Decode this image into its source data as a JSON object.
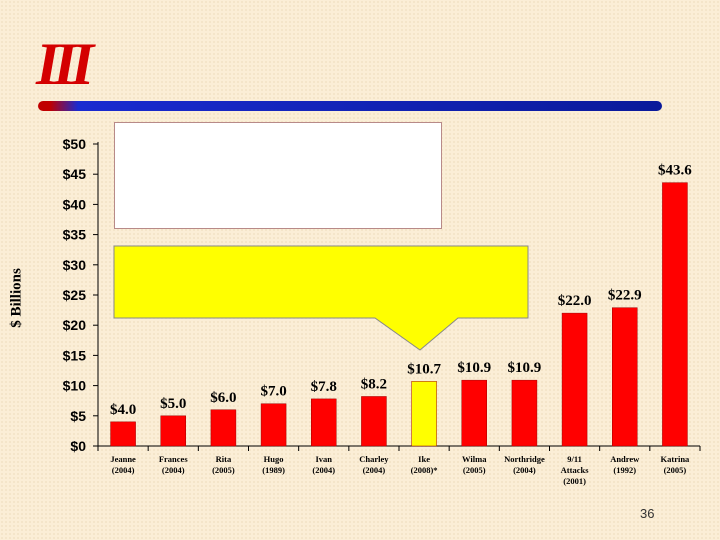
{
  "logo_text": "III",
  "slide_number": "36",
  "chart_data": {
    "type": "bar",
    "ylabel": "$ Billions",
    "ylim": [
      0,
      50
    ],
    "yticks": [
      "$0",
      "$5",
      "$10",
      "$15",
      "$20",
      "$25",
      "$30",
      "$35",
      "$40",
      "$45",
      "$50"
    ],
    "categories": [
      [
        "Jeanne",
        "(2004)"
      ],
      [
        "Frances",
        "(2004)"
      ],
      [
        "Rita",
        "(2005)"
      ],
      [
        "Hugo",
        "(1989)"
      ],
      [
        "Ivan",
        "(2004)"
      ],
      [
        "Charley",
        "(2004)"
      ],
      [
        "Ike",
        "(2008)*"
      ],
      [
        "Wilma",
        "(2005)"
      ],
      [
        "Northridge",
        "(2004)"
      ],
      [
        "9/11",
        "Attacks",
        "(2001)"
      ],
      [
        "Andrew",
        "(1992)"
      ],
      [
        "Katrina",
        "(2005)"
      ]
    ],
    "values": [
      4.0,
      5.0,
      6.0,
      7.0,
      7.8,
      8.2,
      10.7,
      10.9,
      10.9,
      22.0,
      22.9,
      43.6
    ],
    "value_labels": [
      "$4.0",
      "$5.0",
      "$6.0",
      "$7.0",
      "$7.8",
      "$8.2",
      "$10.7",
      "$10.9",
      "$10.9",
      "$22.0",
      "$22.9",
      "$43.6"
    ],
    "bar_colors": [
      "#ff0000",
      "#ff0000",
      "#ff0000",
      "#ff0000",
      "#ff0000",
      "#ff0000",
      "#ffff00",
      "#ff0000",
      "#ff0000",
      "#ff0000",
      "#ff0000",
      "#ff0000"
    ],
    "callout_color": "#ffff00",
    "grid": false
  }
}
